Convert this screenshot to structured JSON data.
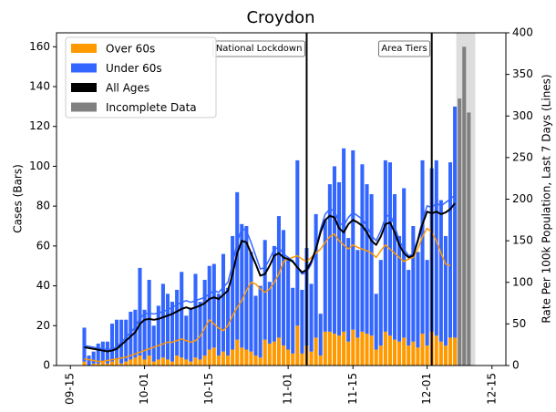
{
  "chart_data": {
    "type": "bar",
    "title": "Croydon",
    "ylabel": "Cases (Bars)",
    "y2label": "Rate Per 100k Population, Last 7 Days (Lines)",
    "x": [
      "09-18",
      "09-19",
      "09-20",
      "09-21",
      "09-22",
      "09-23",
      "09-24",
      "09-25",
      "09-26",
      "09-27",
      "09-28",
      "09-29",
      "09-30",
      "10-01",
      "10-02",
      "10-03",
      "10-04",
      "10-05",
      "10-06",
      "10-07",
      "10-08",
      "10-09",
      "10-10",
      "10-11",
      "10-12",
      "10-13",
      "10-14",
      "10-15",
      "10-16",
      "10-17",
      "10-18",
      "10-19",
      "10-20",
      "10-21",
      "10-22",
      "10-23",
      "10-24",
      "10-25",
      "10-26",
      "10-27",
      "10-28",
      "10-29",
      "10-30",
      "10-31",
      "11-01",
      "11-02",
      "11-03",
      "11-04",
      "11-05",
      "11-06",
      "11-07",
      "11-08",
      "11-09",
      "11-10",
      "11-11",
      "11-12",
      "11-13",
      "11-14",
      "11-15",
      "11-16",
      "11-17",
      "11-18",
      "11-19",
      "11-20",
      "11-21",
      "11-22",
      "11-23",
      "11-24",
      "11-25",
      "11-26",
      "11-27",
      "11-28",
      "11-29",
      "11-30",
      "12-01",
      "12-02",
      "12-03",
      "12-04",
      "12-05",
      "12-06",
      "12-07"
    ],
    "series": [
      {
        "name": "Over 60s",
        "color": "#ff9900",
        "values": [
          2,
          0,
          1,
          1,
          2,
          1,
          2,
          3,
          1,
          2,
          3,
          4,
          5,
          3,
          5,
          2,
          3,
          4,
          3,
          2,
          5,
          4,
          3,
          2,
          4,
          3,
          5,
          8,
          9,
          5,
          7,
          5,
          8,
          13,
          9,
          8,
          7,
          5,
          4,
          13,
          11,
          12,
          14,
          10,
          8,
          6,
          20,
          6,
          10,
          7,
          14,
          5,
          17,
          17,
          16,
          15,
          17,
          12,
          18,
          14,
          17,
          16,
          15,
          8,
          10,
          17,
          15,
          13,
          12,
          14,
          10,
          12,
          9,
          16,
          10,
          17,
          15,
          12,
          10,
          14,
          14
        ],
        "rates": [
          8,
          7,
          6,
          5,
          5,
          6,
          7,
          8,
          9,
          10,
          12,
          14,
          16,
          18,
          20,
          22,
          24,
          26,
          28,
          28,
          30,
          32,
          30,
          28,
          30,
          35,
          45,
          55,
          50,
          45,
          42,
          48,
          60,
          70,
          78,
          90,
          100,
          98,
          92,
          88,
          92,
          100,
          110,
          125,
          128,
          130,
          132,
          128,
          125,
          130,
          135,
          140,
          148,
          155,
          158,
          150,
          145,
          140,
          145,
          142,
          140,
          138,
          135,
          130,
          138,
          145,
          140,
          135,
          130,
          125,
          128,
          130,
          140,
          155,
          165,
          160,
          150,
          135,
          122,
          120,
          null
        ]
      },
      {
        "name": "Under 60s",
        "color": "#3366ff",
        "values": [
          17,
          5,
          6,
          10,
          10,
          11,
          19,
          20,
          22,
          21,
          24,
          24,
          44,
          25,
          38,
          18,
          27,
          37,
          33,
          30,
          33,
          43,
          22,
          27,
          42,
          29,
          38,
          42,
          42,
          31,
          49,
          34,
          57,
          74,
          62,
          62,
          50,
          30,
          36,
          50,
          31,
          48,
          61,
          58,
          46,
          33,
          83,
          32,
          49,
          34,
          62,
          21,
          56,
          74,
          84,
          77,
          92,
          52,
          90,
          44,
          84,
          75,
          71,
          28,
          43,
          86,
          87,
          73,
          53,
          75,
          38,
          58,
          48,
          87,
          43,
          82,
          88,
          71,
          55,
          88,
          116
        ],
        "rates": [
          24,
          23,
          22,
          21,
          20,
          19,
          20,
          22,
          28,
          34,
          40,
          46,
          57,
          62,
          63,
          62,
          63,
          65,
          67,
          70,
          73,
          76,
          78,
          76,
          78,
          80,
          82,
          86,
          90,
          88,
          94,
          100,
          122,
          148,
          165,
          162,
          148,
          132,
          116,
          118,
          128,
          140,
          142,
          134,
          130,
          126,
          118,
          110,
          112,
          122,
          140,
          164,
          182,
          188,
          186,
          172,
          168,
          178,
          184,
          180,
          176,
          168,
          156,
          150,
          162,
          178,
          182,
          168,
          150,
          140,
          132,
          134,
          152,
          175,
          192,
          190,
          195,
          192,
          196,
          200,
          205
        ]
      },
      {
        "name": "All Ages",
        "color": "#000000",
        "axis": "y2",
        "values": [
          22,
          21,
          20,
          19,
          18,
          17,
          18,
          20,
          25,
          30,
          35,
          40,
          50,
          55,
          56,
          55,
          56,
          58,
          60,
          62,
          65,
          68,
          70,
          68,
          70,
          72,
          75,
          80,
          82,
          80,
          85,
          90,
          110,
          135,
          150,
          148,
          135,
          122,
          108,
          110,
          120,
          132,
          135,
          130,
          128,
          125,
          118,
          112,
          115,
          125,
          140,
          160,
          175,
          180,
          178,
          165,
          160,
          170,
          175,
          172,
          168,
          160,
          150,
          145,
          155,
          170,
          172,
          160,
          145,
          135,
          130,
          132,
          150,
          170,
          185,
          183,
          185,
          182,
          184,
          188,
          195
        ]
      },
      {
        "name": "Incomplete Data",
        "color": "#808080",
        "x": [
          "12-08",
          "12-09",
          "12-10"
        ],
        "values": [
          134,
          160,
          127
        ]
      }
    ],
    "annotations": [
      {
        "label": "National Lockdown",
        "x": "11-05"
      },
      {
        "label": "Area Tiers",
        "x": "12-02"
      }
    ],
    "xlim": [
      "09-12",
      "12-18"
    ],
    "xticks": [
      "09-15",
      "10-01",
      "10-15",
      "11-01",
      "11-15",
      "12-01",
      "12-15"
    ],
    "ylim": [
      0,
      167
    ],
    "yticks": [
      0,
      20,
      40,
      60,
      80,
      100,
      120,
      140,
      160
    ],
    "y2lim": [
      0,
      400
    ],
    "y2ticks": [
      0,
      50,
      100,
      150,
      200,
      250,
      300,
      350,
      400
    ],
    "grid": false,
    "legend": "upper left"
  }
}
